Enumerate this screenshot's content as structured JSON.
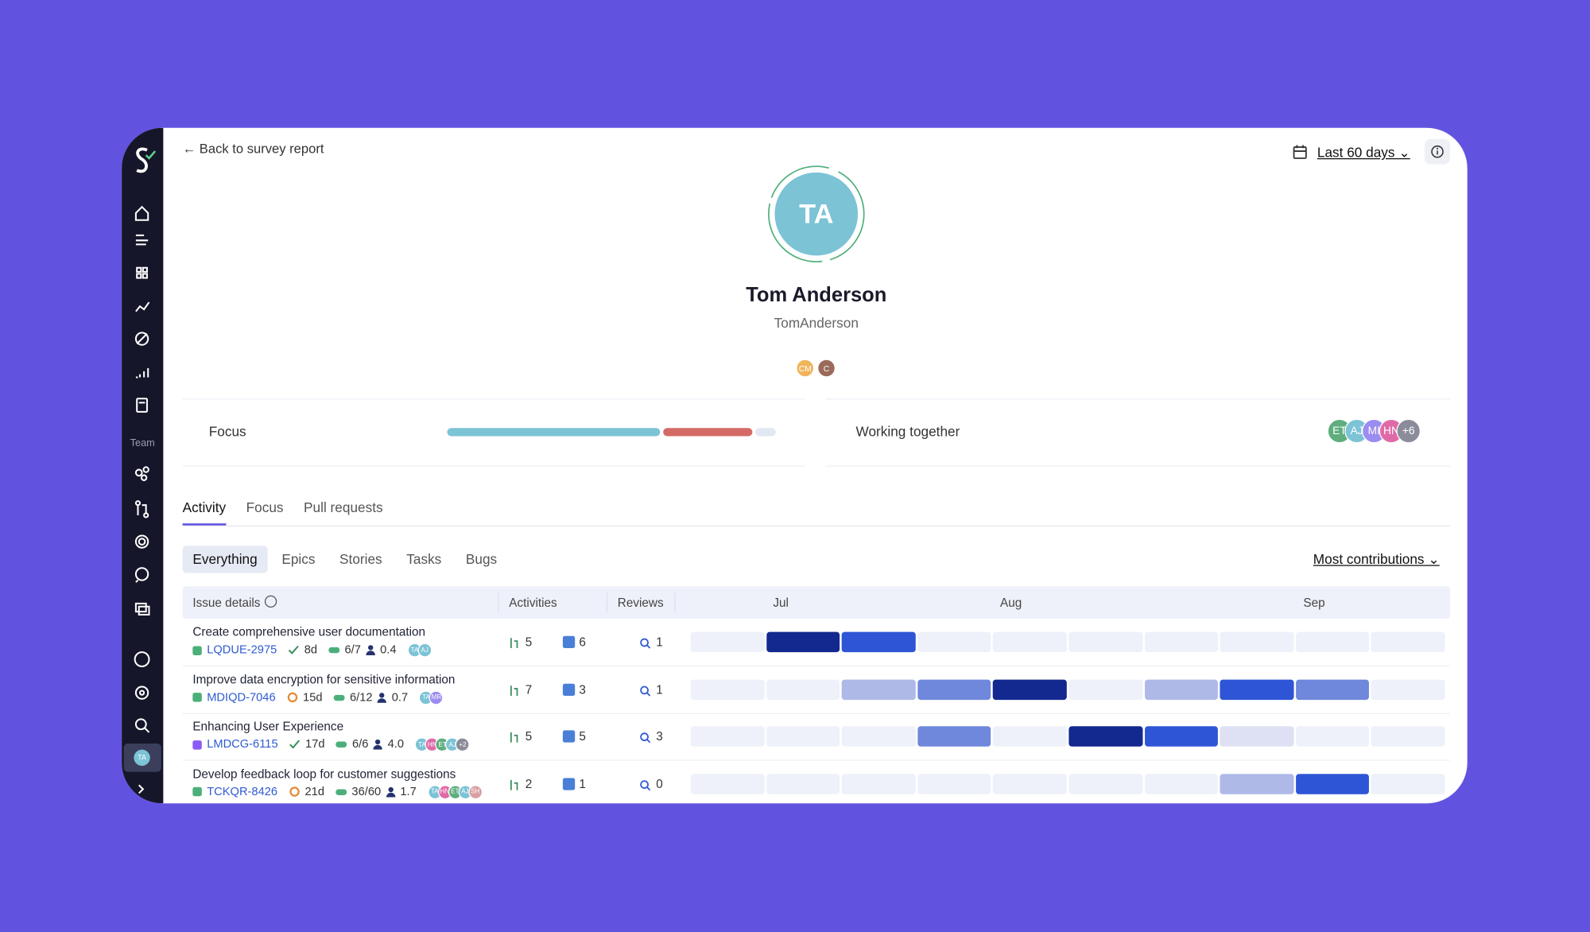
{
  "sidebar": {
    "team_label": "Team",
    "user_initials": "TA"
  },
  "header": {
    "back_link": "Back to survey report",
    "date_range": "Last 60 days"
  },
  "profile": {
    "initials": "TA",
    "avatar_color": "#7cc3d6",
    "name": "Tom Anderson",
    "username": "TomAnderson",
    "teams": [
      {
        "label": "CM",
        "color": "#f0b45a"
      },
      {
        "label": "C",
        "color": "#9a6a5a"
      }
    ]
  },
  "focus": {
    "label": "Focus",
    "segments": [
      {
        "value": 64,
        "color": "#7cc3d6"
      },
      {
        "value": 27,
        "color": "#d46a66"
      },
      {
        "value": 6,
        "color": "#e3e7f3"
      }
    ]
  },
  "working_together": {
    "label": "Working together",
    "people": [
      {
        "label": "ET",
        "color": "#5fae7e"
      },
      {
        "label": "AJ",
        "color": "#7cc3d6"
      },
      {
        "label": "MI",
        "color": "#9b8cf0"
      },
      {
        "label": "HN",
        "color": "#e06aa7"
      },
      {
        "label": "+6",
        "color": "#8a8d99"
      }
    ]
  },
  "tabs": [
    "Activity",
    "Focus",
    "Pull requests"
  ],
  "filters": [
    "Everything",
    "Epics",
    "Stories",
    "Tasks",
    "Bugs"
  ],
  "sort": "Most contributions",
  "table": {
    "headers": [
      "Issue details",
      "Activities",
      "Reviews"
    ],
    "months": [
      "Jul",
      "Aug",
      "Sep"
    ],
    "heat_colors": [
      "#eef1f9",
      "#dde1f3",
      "#aeb9e8",
      "#6f88dc",
      "#2e55d6",
      "#13298f"
    ],
    "rows": [
      {
        "title": "Create comprehensive user documentation",
        "key": "LQDUE-2975",
        "type_color": "#4caf7a",
        "status_icon": "check",
        "age": "8d",
        "progress": "6/7",
        "effort": "0.4",
        "people": [
          {
            "label": "TA",
            "color": "#7cc3d6"
          },
          {
            "label": "AJ",
            "color": "#7cc3d6"
          }
        ],
        "prs": 5,
        "tasks": 6,
        "reviews": 1,
        "heat": [
          0,
          5,
          4,
          0,
          0,
          0,
          0,
          0,
          0,
          0
        ]
      },
      {
        "title": "Improve data encryption for sensitive information",
        "key": "MDIQD-7046",
        "type_color": "#4caf7a",
        "status_icon": "circle",
        "age": "15d",
        "progress": "6/12",
        "effort": "0.7",
        "people": [
          {
            "label": "TA",
            "color": "#7cc3d6"
          },
          {
            "label": "MR",
            "color": "#9b8cf0"
          }
        ],
        "prs": 7,
        "tasks": 3,
        "reviews": 1,
        "heat": [
          0,
          0,
          2,
          3,
          5,
          0,
          2,
          4,
          3,
          0
        ]
      },
      {
        "title": "Enhancing User Experience",
        "key": "LMDCG-6115",
        "type_color": "#8b5cf6",
        "status_icon": "check",
        "age": "17d",
        "progress": "6/6",
        "effort": "4.0",
        "people": [
          {
            "label": "TA",
            "color": "#7cc3d6"
          },
          {
            "label": "HN",
            "color": "#e06aa7"
          },
          {
            "label": "ET",
            "color": "#5fae7e"
          },
          {
            "label": "AJ",
            "color": "#7cc3d6"
          },
          {
            "label": "+2",
            "color": "#8a8d99"
          }
        ],
        "prs": 5,
        "tasks": 5,
        "reviews": 3,
        "heat": [
          0,
          0,
          0,
          3,
          0,
          5,
          4,
          1,
          0,
          0
        ]
      },
      {
        "title": "Develop feedback loop for customer suggestions",
        "key": "TCKQR-8426",
        "type_color": "#4caf7a",
        "status_icon": "circle",
        "age": "21d",
        "progress": "36/60",
        "effort": "1.7",
        "people": [
          {
            "label": "TA",
            "color": "#7cc3d6"
          },
          {
            "label": "HN",
            "color": "#e06aa7"
          },
          {
            "label": "ET",
            "color": "#5fae7e"
          },
          {
            "label": "AJ",
            "color": "#7cc3d6"
          },
          {
            "label": "SH",
            "color": "#d8a0a0"
          }
        ],
        "prs": 2,
        "tasks": 1,
        "reviews": 0,
        "heat": [
          0,
          0,
          0,
          0,
          0,
          0,
          0,
          2,
          4,
          0
        ]
      }
    ]
  }
}
